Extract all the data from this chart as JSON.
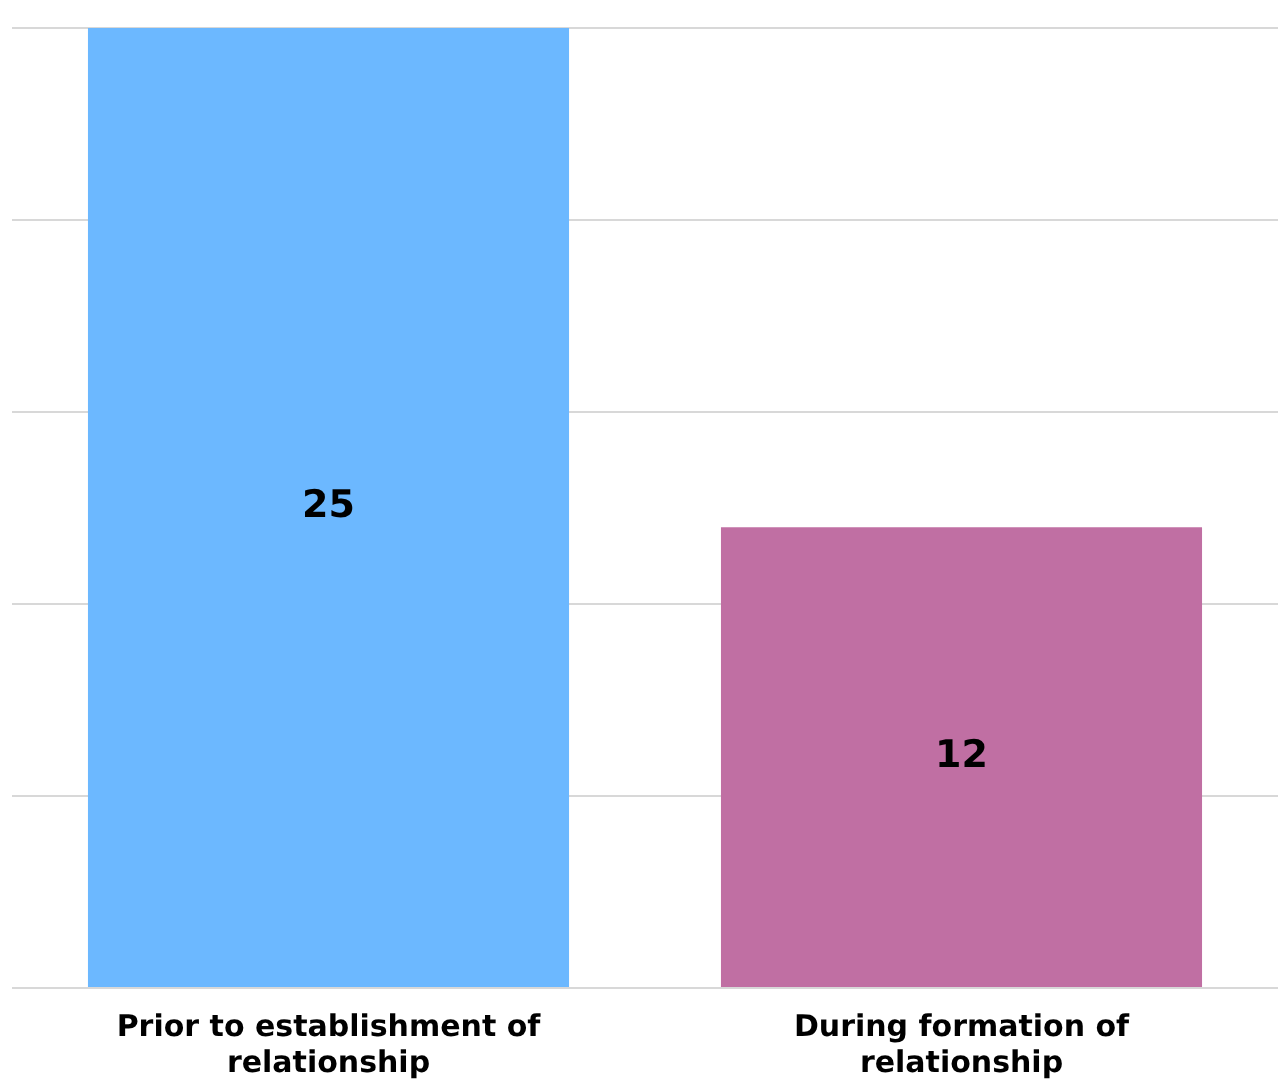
{
  "chart_data": {
    "type": "bar",
    "categories": [
      "Prior to establishment of relationship",
      "During formation of relationship"
    ],
    "values": [
      25,
      12
    ],
    "colors": [
      "#6cb8ff",
      "#c06fa3"
    ],
    "ylim": [
      0,
      25
    ],
    "yticks": [
      {
        "value": 0,
        "label": null
      },
      {
        "value": 5,
        "label": null
      },
      {
        "value": 10,
        "label": null
      },
      {
        "value": 15,
        "label": null
      },
      {
        "value": 20,
        "label": null
      },
      {
        "value": 25,
        "label": null
      }
    ],
    "grid": "y",
    "tick_labels": "x",
    "data_labels": true
  }
}
